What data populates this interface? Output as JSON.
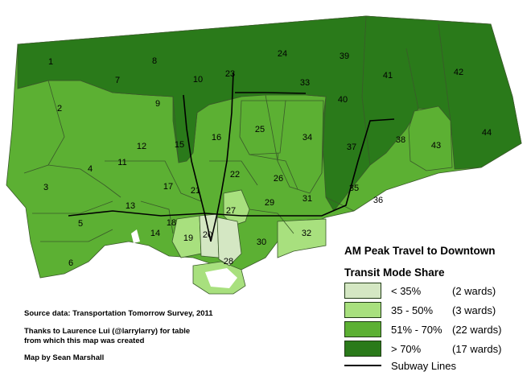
{
  "title": "AM Peak Travel to Downtown",
  "subtitle": "Transit Mode Share",
  "colors": {
    "lt35": "#d4e7c3",
    "c35_50": "#a8e07e",
    "c51_70": "#5cb033",
    "gt70": "#2a7a1a",
    "border": "#3a5a2a",
    "subway": "#000000",
    "water": "#ffffff"
  },
  "legend": [
    {
      "range": "< 35%",
      "count": "(2 wards)",
      "color_key": "lt35"
    },
    {
      "range": "35 - 50%",
      "count": "(3 wards)",
      "color_key": "c35_50"
    },
    {
      "range": "51% - 70%",
      "count": "(22 wards)",
      "color_key": "c51_70"
    },
    {
      "range": "> 70%",
      "count": "(17 wards)",
      "color_key": "gt70"
    }
  ],
  "subway_label": "Subway Lines",
  "credits": {
    "source": "Source data: Transportation Tomorrow Survey, 2011",
    "thanks_line1": "Thanks to Laurence Lui (@larrylarry) for table",
    "thanks_line2": "from which this map was created",
    "author": "Map by Sean Marshall"
  },
  "wards": [
    {
      "n": "1",
      "cat": "gt70"
    },
    {
      "n": "2",
      "cat": "c51_70"
    },
    {
      "n": "3",
      "cat": "c51_70"
    },
    {
      "n": "4",
      "cat": "c51_70"
    },
    {
      "n": "5",
      "cat": "c51_70"
    },
    {
      "n": "6",
      "cat": "c51_70"
    },
    {
      "n": "7",
      "cat": "gt70"
    },
    {
      "n": "8",
      "cat": "gt70"
    },
    {
      "n": "9",
      "cat": "gt70"
    },
    {
      "n": "10",
      "cat": "gt70"
    },
    {
      "n": "11",
      "cat": "c51_70"
    },
    {
      "n": "12",
      "cat": "c51_70"
    },
    {
      "n": "13",
      "cat": "c51_70"
    },
    {
      "n": "14",
      "cat": "c51_70"
    },
    {
      "n": "15",
      "cat": "gt70"
    },
    {
      "n": "16",
      "cat": "c51_70"
    },
    {
      "n": "17",
      "cat": "c51_70"
    },
    {
      "n": "18",
      "cat": "c51_70"
    },
    {
      "n": "19",
      "cat": "c35_50"
    },
    {
      "n": "20",
      "cat": "lt35"
    },
    {
      "n": "21",
      "cat": "c51_70"
    },
    {
      "n": "22",
      "cat": "c51_70"
    },
    {
      "n": "23",
      "cat": "gt70"
    },
    {
      "n": "24",
      "cat": "gt70"
    },
    {
      "n": "25",
      "cat": "c51_70"
    },
    {
      "n": "26",
      "cat": "c51_70"
    },
    {
      "n": "27",
      "cat": "c35_50"
    },
    {
      "n": "28",
      "cat": "lt35"
    },
    {
      "n": "29",
      "cat": "c51_70"
    },
    {
      "n": "30",
      "cat": "c51_70"
    },
    {
      "n": "31",
      "cat": "c51_70"
    },
    {
      "n": "32",
      "cat": "c35_50"
    },
    {
      "n": "33",
      "cat": "gt70"
    },
    {
      "n": "34",
      "cat": "c51_70"
    },
    {
      "n": "35",
      "cat": "gt70"
    },
    {
      "n": "36",
      "cat": "c51_70"
    },
    {
      "n": "37",
      "cat": "gt70"
    },
    {
      "n": "38",
      "cat": "gt70"
    },
    {
      "n": "39",
      "cat": "gt70"
    },
    {
      "n": "40",
      "cat": "gt70"
    },
    {
      "n": "41",
      "cat": "gt70"
    },
    {
      "n": "42",
      "cat": "gt70"
    },
    {
      "n": "43",
      "cat": "c51_70"
    },
    {
      "n": "44",
      "cat": "gt70"
    }
  ]
}
